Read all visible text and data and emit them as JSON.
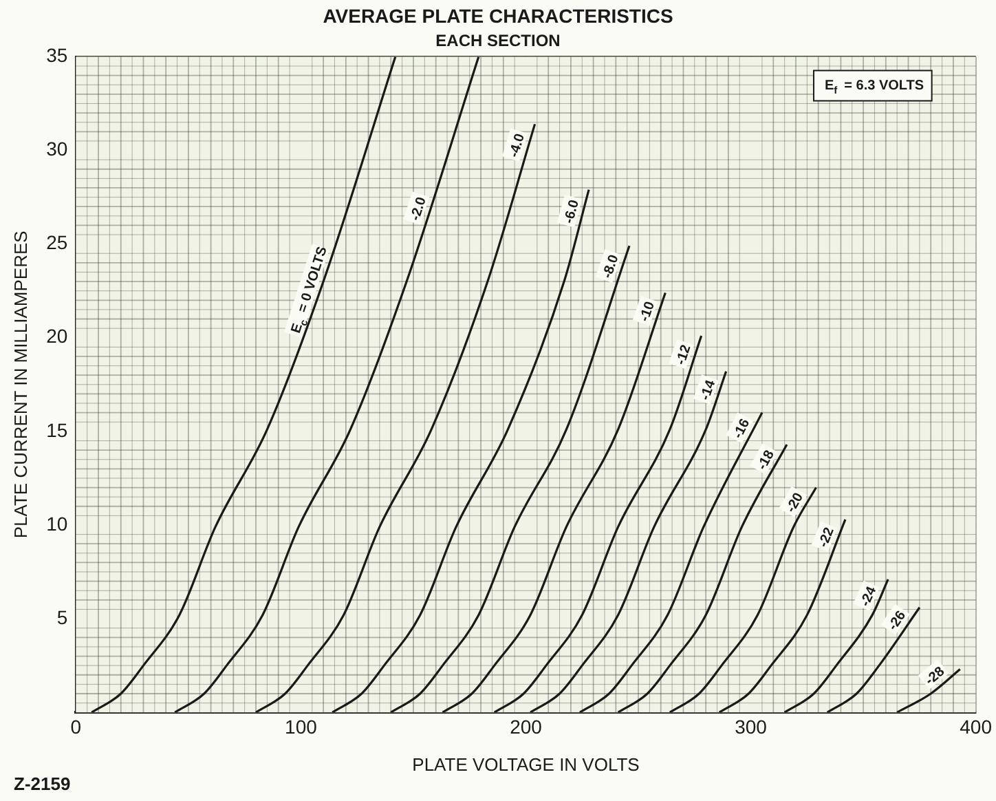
{
  "chart_data": {
    "type": "line",
    "title": "AVERAGE PLATE CHARACTERISTICS",
    "subtitle": "EACH SECTION",
    "xlabel": "PLATE VOLTAGE IN VOLTS",
    "ylabel": "PLATE CURRENT IN MILLIAMPERES",
    "annotations": [
      "E$_{f}$ = 6.3 VOLTS",
      "Z-2159"
    ],
    "xlim": [
      0,
      400
    ],
    "xticks": [
      0,
      100,
      200,
      300,
      400
    ],
    "ylim": [
      0,
      35
    ],
    "yticks": [
      5,
      10,
      15,
      20,
      25,
      30,
      35
    ],
    "grid": true,
    "legend": false,
    "marker": "none",
    "line_style": "solid",
    "series": [
      {
        "name": "E$_{c}$ = 0 VOLTS",
        "color": "#1a1a1a",
        "x": [
          7,
          20,
          30,
          46,
          62,
          85,
          110,
          142
        ],
        "values": [
          0,
          1,
          2.5,
          5.2,
          9.9,
          15.1,
          23,
          35
        ]
      },
      {
        "name": "-2.0",
        "color": "#1a1a1a",
        "x": [
          44,
          57,
          67,
          83,
          99,
          122,
          147,
          179
        ],
        "values": [
          0,
          1,
          2.5,
          5.2,
          9.9,
          15.1,
          23,
          35
        ]
      },
      {
        "name": "-4.0",
        "color": "#1a1a1a",
        "x": [
          80,
          93,
          103,
          119,
          135,
          158,
          183,
          204
        ],
        "values": [
          0,
          1,
          2.5,
          5.2,
          9.9,
          15.1,
          23,
          31.4
        ]
      },
      {
        "name": "-6.0",
        "color": "#1a1a1a",
        "x": [
          114,
          127,
          137,
          153,
          169,
          192,
          217,
          228
        ],
        "values": [
          0,
          1,
          2.5,
          5.2,
          9.9,
          15.1,
          23,
          27.9
        ]
      },
      {
        "name": "-8.0",
        "color": "#1a1a1a",
        "x": [
          140,
          153,
          163,
          179,
          195,
          218,
          246
        ],
        "values": [
          0,
          1,
          2.5,
          5.2,
          9.9,
          15.1,
          24.9
        ]
      },
      {
        "name": "-10",
        "color": "#1a1a1a",
        "x": [
          163,
          176,
          186,
          202,
          218,
          241,
          262
        ],
        "values": [
          0,
          1,
          2.5,
          5.2,
          9.9,
          15.1,
          22.4
        ]
      },
      {
        "name": "-12",
        "color": "#1a1a1a",
        "x": [
          186,
          199,
          209,
          225,
          241,
          264,
          278
        ],
        "values": [
          0,
          1,
          2.5,
          5.2,
          9.9,
          15.1,
          20.1
        ]
      },
      {
        "name": "-14",
        "color": "#1a1a1a",
        "x": [
          202,
          215,
          225,
          241,
          257,
          280,
          289
        ],
        "values": [
          0,
          1,
          2.5,
          5.2,
          9.9,
          15.1,
          18.2
        ]
      },
      {
        "name": "-16",
        "color": "#1a1a1a",
        "x": [
          224,
          237,
          247,
          263,
          279,
          305
        ],
        "values": [
          0,
          1,
          2.5,
          5.2,
          9.9,
          16
        ]
      },
      {
        "name": "-18",
        "color": "#1a1a1a",
        "x": [
          241,
          254,
          264,
          280,
          296,
          316
        ],
        "values": [
          0,
          1,
          2.5,
          5.2,
          9.9,
          14.3
        ]
      },
      {
        "name": "-20",
        "color": "#1a1a1a",
        "x": [
          264,
          277,
          287,
          303,
          319,
          329
        ],
        "values": [
          0,
          1,
          2.5,
          5.2,
          9.9,
          12
        ]
      },
      {
        "name": "-22",
        "color": "#1a1a1a",
        "x": [
          286,
          299,
          309,
          325,
          342
        ],
        "values": [
          0,
          1,
          2.5,
          5.2,
          10.3
        ]
      },
      {
        "name": "-24",
        "color": "#1a1a1a",
        "x": [
          315,
          328,
          338,
          354,
          361
        ],
        "values": [
          0,
          1,
          2.5,
          5.2,
          7.1
        ]
      },
      {
        "name": "-26",
        "color": "#1a1a1a",
        "x": [
          334,
          347,
          357,
          375
        ],
        "values": [
          0,
          1,
          2.5,
          5.6
        ]
      },
      {
        "name": "-28",
        "color": "#1a1a1a",
        "x": [
          365,
          380,
          393
        ],
        "values": [
          0,
          1,
          2.3
        ]
      }
    ]
  }
}
